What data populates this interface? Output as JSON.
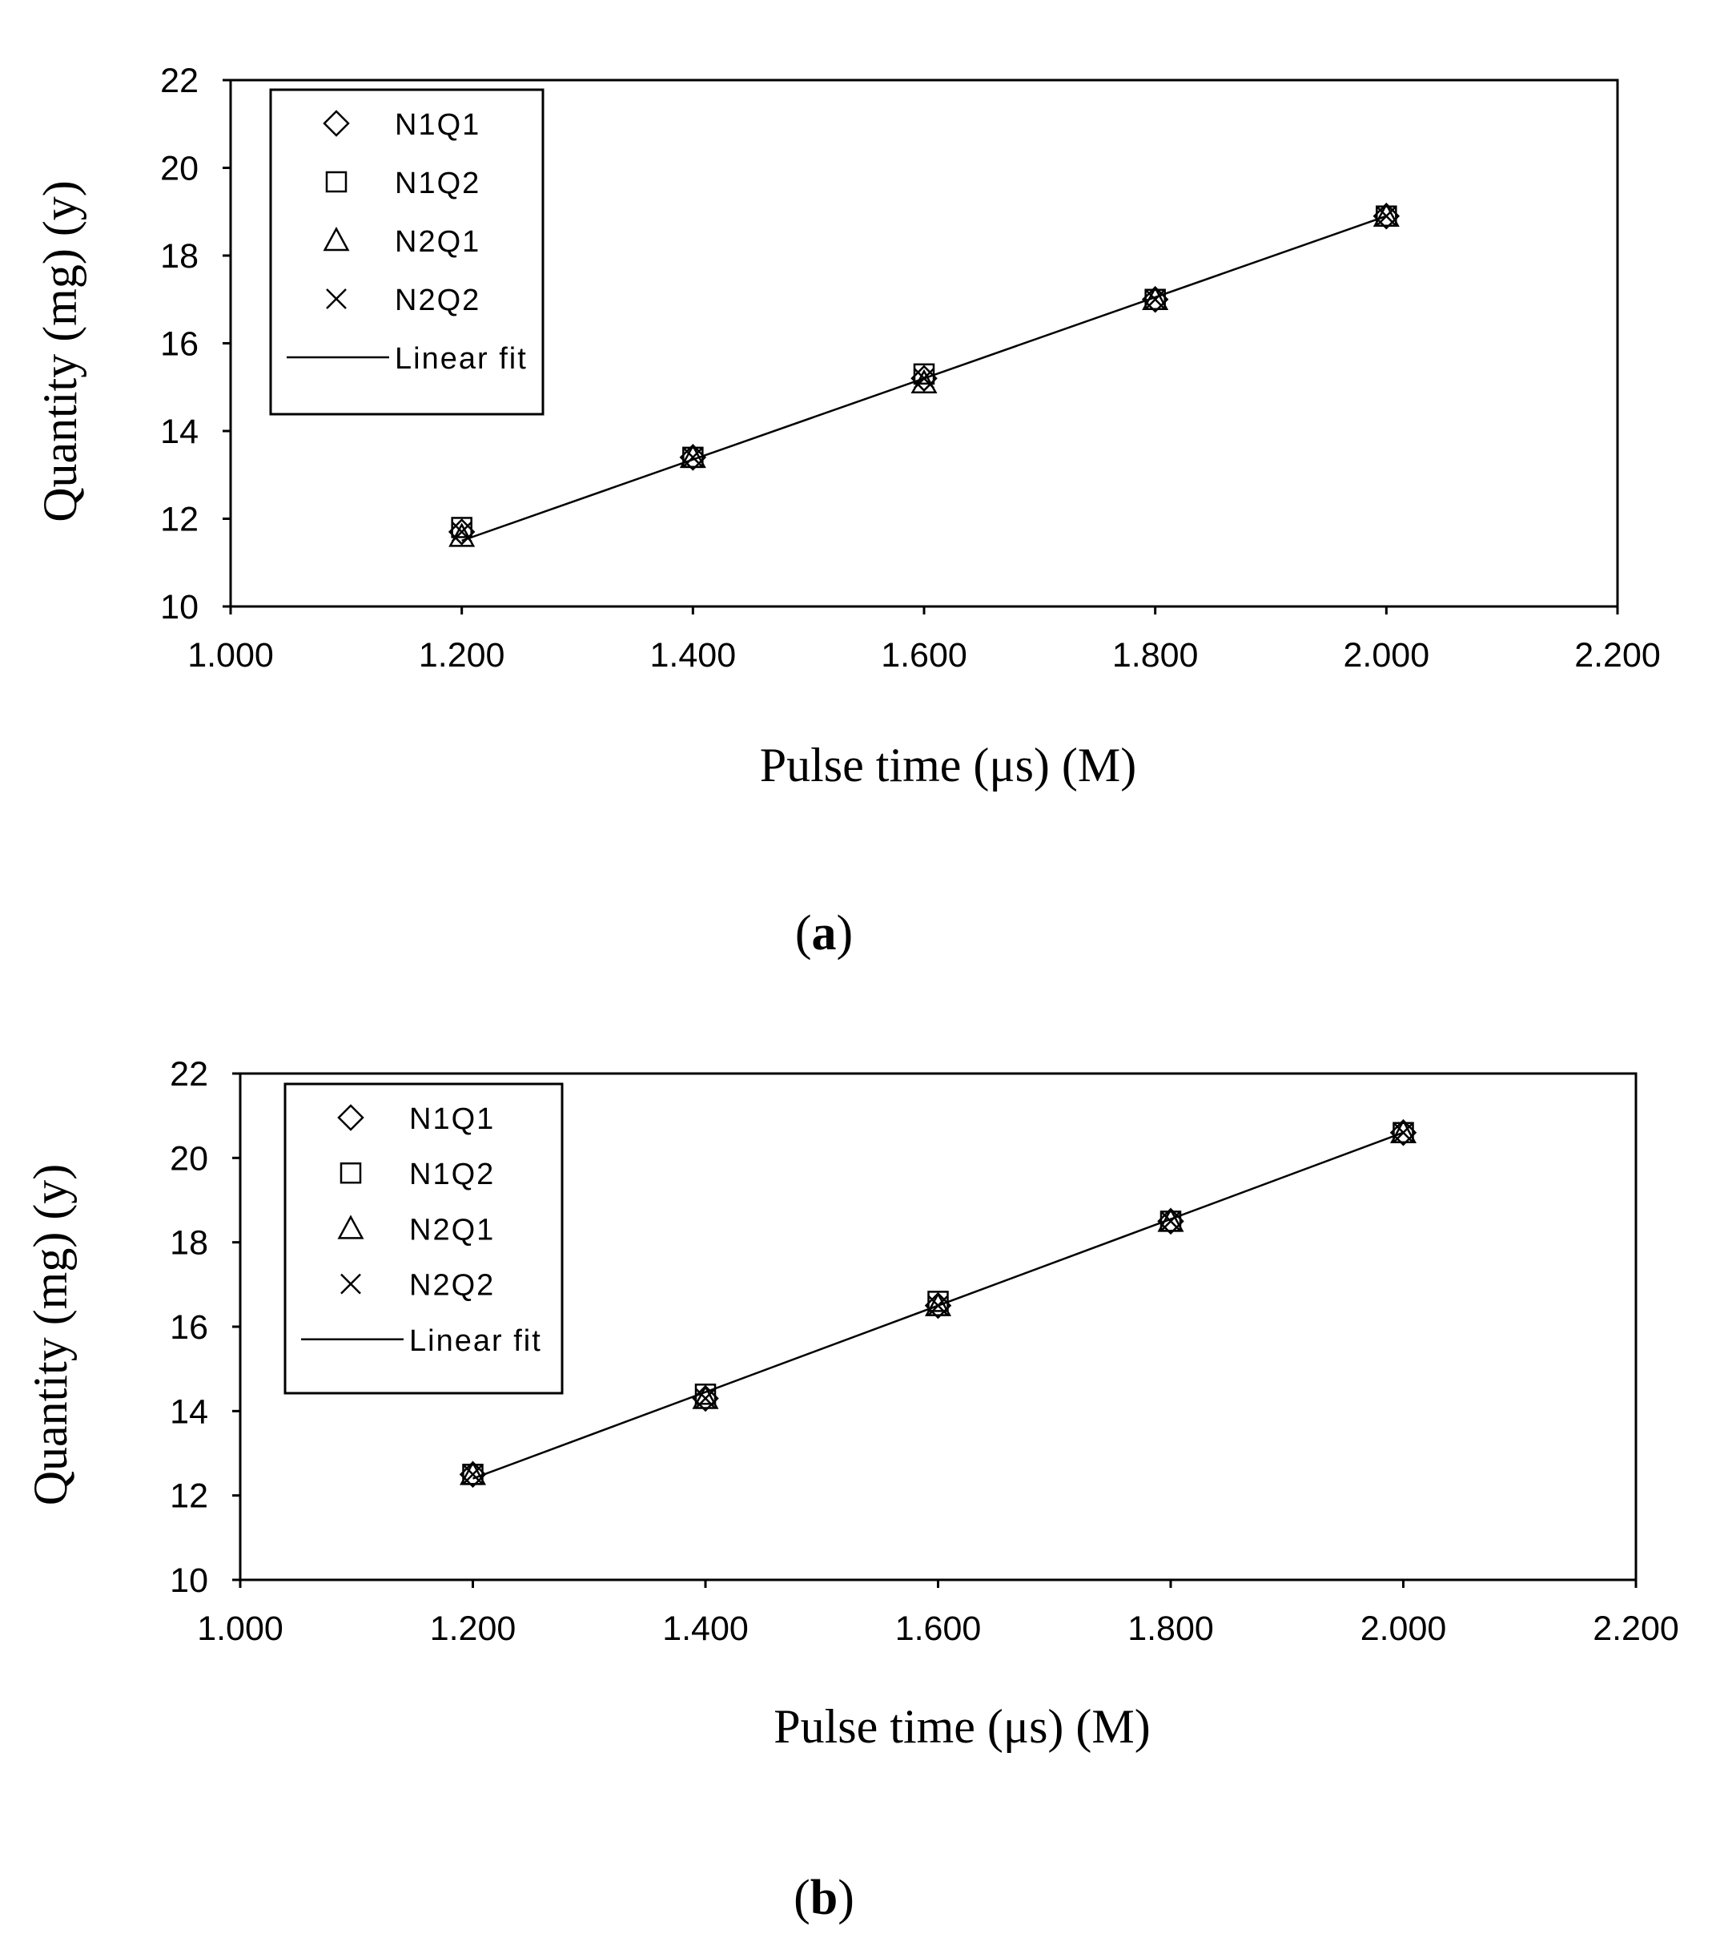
{
  "chart_data": [
    {
      "type": "scatter",
      "panel": "a",
      "xlabel": "Pulse time (μs) (M)",
      "ylabel": "Quantity (mg) (y)",
      "xlim": [
        1.0,
        2.2
      ],
      "ylim": [
        10,
        22
      ],
      "xticks": [
        "1.000",
        "1.200",
        "1.400",
        "1.600",
        "1.800",
        "2.000",
        "2.200"
      ],
      "yticks": [
        "10",
        "12",
        "14",
        "16",
        "18",
        "20",
        "22"
      ],
      "legend_position": "top-left",
      "x": [
        1.2,
        1.4,
        1.6,
        1.8,
        2.0
      ],
      "series": [
        {
          "name": "N1Q1",
          "marker": "diamond",
          "values": [
            11.7,
            13.4,
            15.2,
            17.0,
            18.9
          ]
        },
        {
          "name": "N1Q2",
          "marker": "square",
          "values": [
            11.8,
            13.4,
            15.3,
            17.0,
            18.9
          ]
        },
        {
          "name": "N2Q1",
          "marker": "triangle",
          "values": [
            11.6,
            13.4,
            15.1,
            17.0,
            18.9
          ]
        },
        {
          "name": "N2Q2",
          "marker": "x",
          "values": [
            11.7,
            13.4,
            15.2,
            17.0,
            18.9
          ]
        }
      ],
      "fit": {
        "name": "Linear fit",
        "x": [
          1.2,
          2.0
        ],
        "y": [
          11.5,
          18.9
        ]
      }
    },
    {
      "type": "scatter",
      "panel": "b",
      "xlabel": "Pulse time (μs) (M)",
      "ylabel": "Quantity (mg) (y)",
      "xlim": [
        1.0,
        2.2
      ],
      "ylim": [
        10,
        22
      ],
      "xticks": [
        "1.000",
        "1.200",
        "1.400",
        "1.600",
        "1.800",
        "2.000",
        "2.200"
      ],
      "yticks": [
        "10",
        "12",
        "14",
        "16",
        "18",
        "20",
        "22"
      ],
      "legend_position": "top-left",
      "x": [
        1.2,
        1.4,
        1.6,
        1.8,
        2.0
      ],
      "series": [
        {
          "name": "N1Q1",
          "marker": "diamond",
          "values": [
            12.5,
            14.3,
            16.5,
            18.5,
            20.6
          ]
        },
        {
          "name": "N1Q2",
          "marker": "square",
          "values": [
            12.5,
            14.4,
            16.6,
            18.5,
            20.6
          ]
        },
        {
          "name": "N2Q1",
          "marker": "triangle",
          "values": [
            12.5,
            14.3,
            16.5,
            18.5,
            20.6
          ]
        },
        {
          "name": "N2Q2",
          "marker": "x",
          "values": [
            12.5,
            14.3,
            16.5,
            18.5,
            20.6
          ]
        }
      ],
      "fit": {
        "name": "Linear fit",
        "x": [
          1.2,
          2.0
        ],
        "y": [
          12.4,
          20.6
        ]
      }
    }
  ],
  "captions": [
    {
      "open": "(",
      "letter": "a",
      "close": ")"
    },
    {
      "open": "(",
      "letter": "b",
      "close": ")"
    }
  ]
}
